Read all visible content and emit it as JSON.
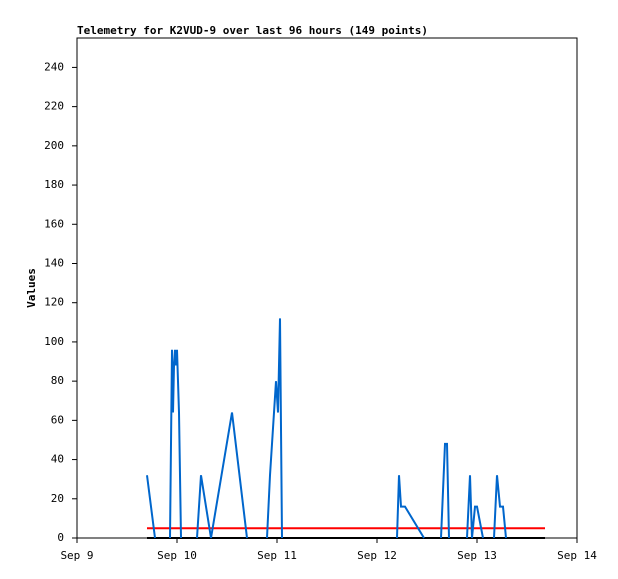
{
  "chart_data": {
    "type": "line",
    "title": "Telemetry for K2VUD-9 over last 96 hours (149 points)",
    "y_label": "Values",
    "xlim": [
      9,
      14
    ],
    "xticks": [
      {
        "value": 9,
        "label": "Sep 9"
      },
      {
        "value": 10,
        "label": "Sep 10"
      },
      {
        "value": 11,
        "label": "Sep 11"
      },
      {
        "value": 12,
        "label": "Sep 12"
      },
      {
        "value": 13,
        "label": "Sep 13"
      },
      {
        "value": 14,
        "label": "Sep 14"
      }
    ],
    "ylim": [
      0,
      255
    ],
    "yticks": [
      0,
      20,
      40,
      60,
      80,
      100,
      120,
      140,
      160,
      180,
      200,
      220,
      240
    ],
    "grid": false,
    "series": [
      {
        "color": "#000000",
        "x": [
          9.7,
          13.68
        ],
        "values": [
          0,
          0
        ]
      },
      {
        "color": "#ff0000",
        "x": [
          9.7,
          13.68
        ],
        "values": [
          5,
          5
        ]
      },
      {
        "color": "#0066cc",
        "x": [
          9.7,
          9.78,
          9.85,
          9.93,
          9.95,
          9.96,
          9.97,
          9.98,
          9.99,
          10.0,
          10.02,
          10.04,
          10.1,
          10.2,
          10.24,
          10.34,
          10.55,
          10.7,
          10.8,
          10.9,
          10.93,
          10.97,
          10.99,
          11.01,
          11.03,
          11.05,
          11.6,
          12.2,
          12.22,
          12.24,
          12.28,
          12.47,
          12.55,
          12.64,
          12.68,
          12.7,
          12.72,
          12.8,
          12.9,
          12.93,
          12.95,
          12.98,
          13.0,
          13.03,
          13.06,
          13.12,
          13.17,
          13.2,
          13.23,
          13.26,
          13.29
        ],
        "values": [
          32,
          0,
          null,
          0,
          96,
          64,
          88,
          96,
          88,
          96,
          64,
          0,
          null,
          0,
          32,
          0,
          64,
          0,
          null,
          0,
          32,
          64,
          80,
          64,
          112,
          0,
          null,
          0,
          32,
          16,
          16,
          0,
          null,
          0,
          48,
          48,
          0,
          null,
          0,
          32,
          0,
          16,
          16,
          8,
          0,
          null,
          0,
          32,
          16,
          16,
          0
        ]
      }
    ]
  }
}
